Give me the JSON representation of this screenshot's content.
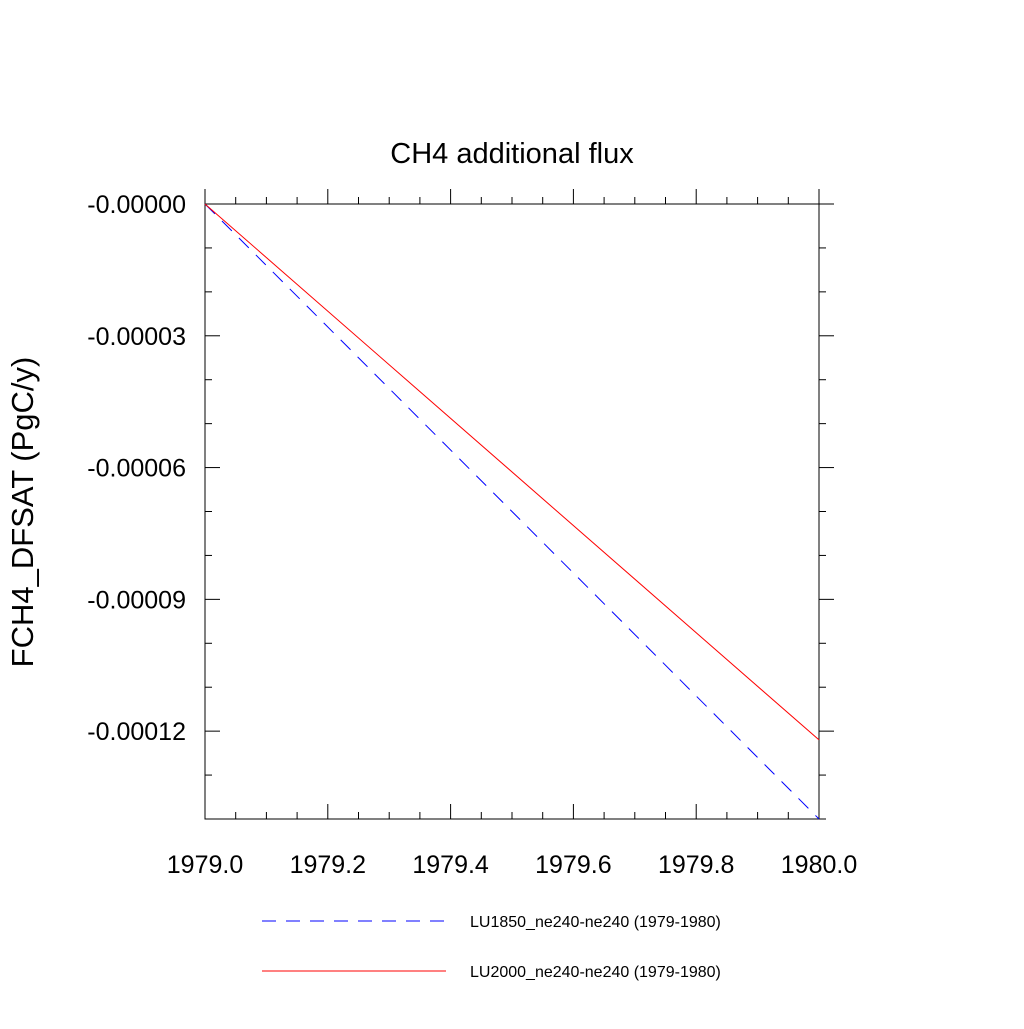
{
  "chart_data": {
    "type": "line",
    "title": "CH4 additional flux",
    "xlabel": "",
    "ylabel": "FCH4_DFSAT  (PgC/y)",
    "xlim": [
      1979.0,
      1980.0
    ],
    "ylim": [
      -0.00014,
      0.0
    ],
    "x_ticks": [
      1979.0,
      1979.2,
      1979.4,
      1979.6,
      1979.8,
      1980.0
    ],
    "x_tick_labels": [
      "1979.0",
      "1979.2",
      "1979.4",
      "1979.6",
      "1979.8",
      "1980.0"
    ],
    "y_ticks": [
      0.0,
      -3e-05,
      -6e-05,
      -9e-05,
      -0.00012
    ],
    "y_tick_labels": [
      "-0.00000",
      "-0.00003",
      "-0.00006",
      "-0.00009",
      "-0.00012"
    ],
    "grid": false,
    "legend_position": "bottom",
    "series": [
      {
        "name": "LU1850_ne240-ne240 (1979-1980)",
        "color": "#0000ff",
        "style": "dashed",
        "x": [
          1979.0,
          1980.0
        ],
        "y": [
          0.0,
          -0.00014
        ]
      },
      {
        "name": "LU2000_ne240-ne240 (1979-1980)",
        "color": "#ff0000",
        "style": "solid",
        "x": [
          1979.0,
          1980.0
        ],
        "y": [
          0.0,
          -0.000122
        ]
      }
    ]
  }
}
